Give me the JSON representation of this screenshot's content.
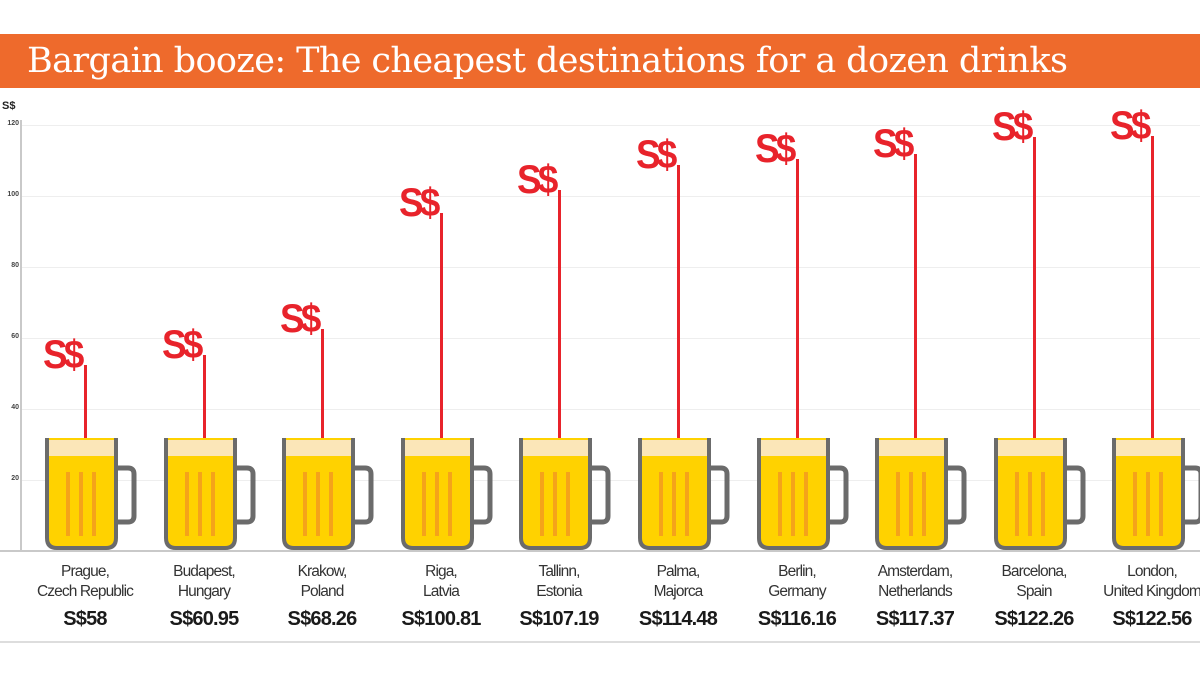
{
  "header": {
    "title": "Bargain booze: The cheapest destinations for a dozen drinks",
    "accent_color": "#ee6a2c"
  },
  "axis": {
    "unit_label": "S$",
    "ticks": [
      "120",
      "100",
      "80",
      "60",
      "40",
      "20"
    ]
  },
  "bars": [
    {
      "city_line1": "Prague,",
      "city_line2": "Czech Republic",
      "price": "S$58",
      "marker": "S$"
    },
    {
      "city_line1": "Budapest,",
      "city_line2": "Hungary",
      "price": "S$60.95",
      "marker": "S$"
    },
    {
      "city_line1": "Krakow,",
      "city_line2": "Poland",
      "price": "S$68.26",
      "marker": "S$"
    },
    {
      "city_line1": "Riga,",
      "city_line2": "Latvia",
      "price": "S$100.81",
      "marker": "S$"
    },
    {
      "city_line1": "Tallinn,",
      "city_line2": "Estonia",
      "price": "S$107.19",
      "marker": "S$"
    },
    {
      "city_line1": "Palma,",
      "city_line2": "Majorca",
      "price": "S$114.48",
      "marker": "S$"
    },
    {
      "city_line1": "Berlin,",
      "city_line2": "Germany",
      "price": "S$116.16",
      "marker": "S$"
    },
    {
      "city_line1": "Amsterdam,",
      "city_line2": "Netherlands",
      "price": "S$117.37",
      "marker": "S$"
    },
    {
      "city_line1": "Barcelona,",
      "city_line2": "Spain",
      "price": "S$122.26",
      "marker": "S$"
    },
    {
      "city_line1": "London,",
      "city_line2": "United Kingdom",
      "price": "S$122.56",
      "marker": "S$"
    }
  ],
  "chart_data": {
    "type": "bar",
    "title": "Bargain booze: The cheapest destinations for a dozen drinks",
    "xlabel": "",
    "ylabel": "S$",
    "ylim": [
      0,
      120
    ],
    "yticks": [
      20,
      40,
      60,
      80,
      100,
      120
    ],
    "grid": true,
    "legend": null,
    "categories": [
      "Prague, Czech Republic",
      "Budapest, Hungary",
      "Krakow, Poland",
      "Riga, Latvia",
      "Tallinn, Estonia",
      "Palma, Majorca",
      "Berlin, Germany",
      "Amsterdam, Netherlands",
      "Barcelona, Spain",
      "London, United Kingdom"
    ],
    "values": [
      58,
      60.95,
      68.26,
      100.81,
      107.19,
      114.48,
      116.16,
      117.37,
      122.26,
      122.56
    ],
    "value_labels": [
      "S$58",
      "S$60.95",
      "S$68.26",
      "S$100.81",
      "S$107.19",
      "S$114.48",
      "S$116.16",
      "S$117.37",
      "S$122.26",
      "S$122.56"
    ],
    "marker_style": "beer mug with red stick topped by 'S$' label at value height"
  }
}
